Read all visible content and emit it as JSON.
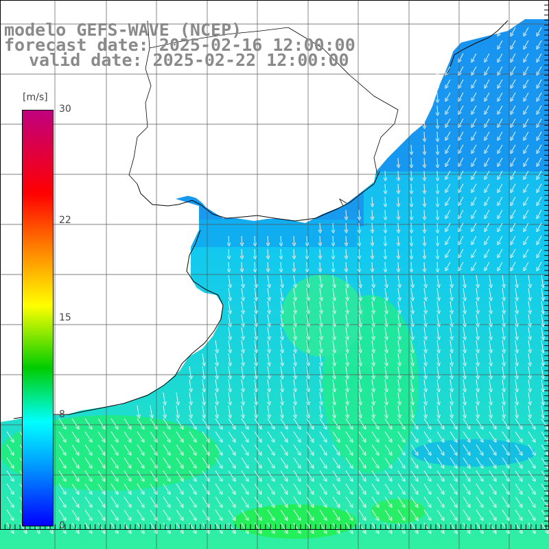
{
  "title": {
    "line1": "modelo GEFS-WAVE (NCEP)",
    "line2": "forecast date: 2025-02-16 12:00:00",
    "line3": "valid date: 2025-02-22 12:00:00"
  },
  "colorbar": {
    "unit": "[m/s]",
    "ticks": [
      {
        "label": "30",
        "value": 30
      },
      {
        "label": "22",
        "value": 22
      },
      {
        "label": "15",
        "value": 15
      },
      {
        "label": "8",
        "value": 8
      },
      {
        "label": "0",
        "value": 0
      }
    ],
    "min": 0,
    "max": 30,
    "colors": [
      "#0000ff",
      "#00a0ff",
      "#00ffff",
      "#00cc00",
      "#ffff00",
      "#ff7f00",
      "#ff0000",
      "#c0007f"
    ]
  },
  "map": {
    "field": "wind speed and direction",
    "wind_direction": "mostly toward south / south-southeast",
    "speed_range_ms": [
      6,
      13
    ],
    "land_color": "#ffffff",
    "grid": true
  }
}
